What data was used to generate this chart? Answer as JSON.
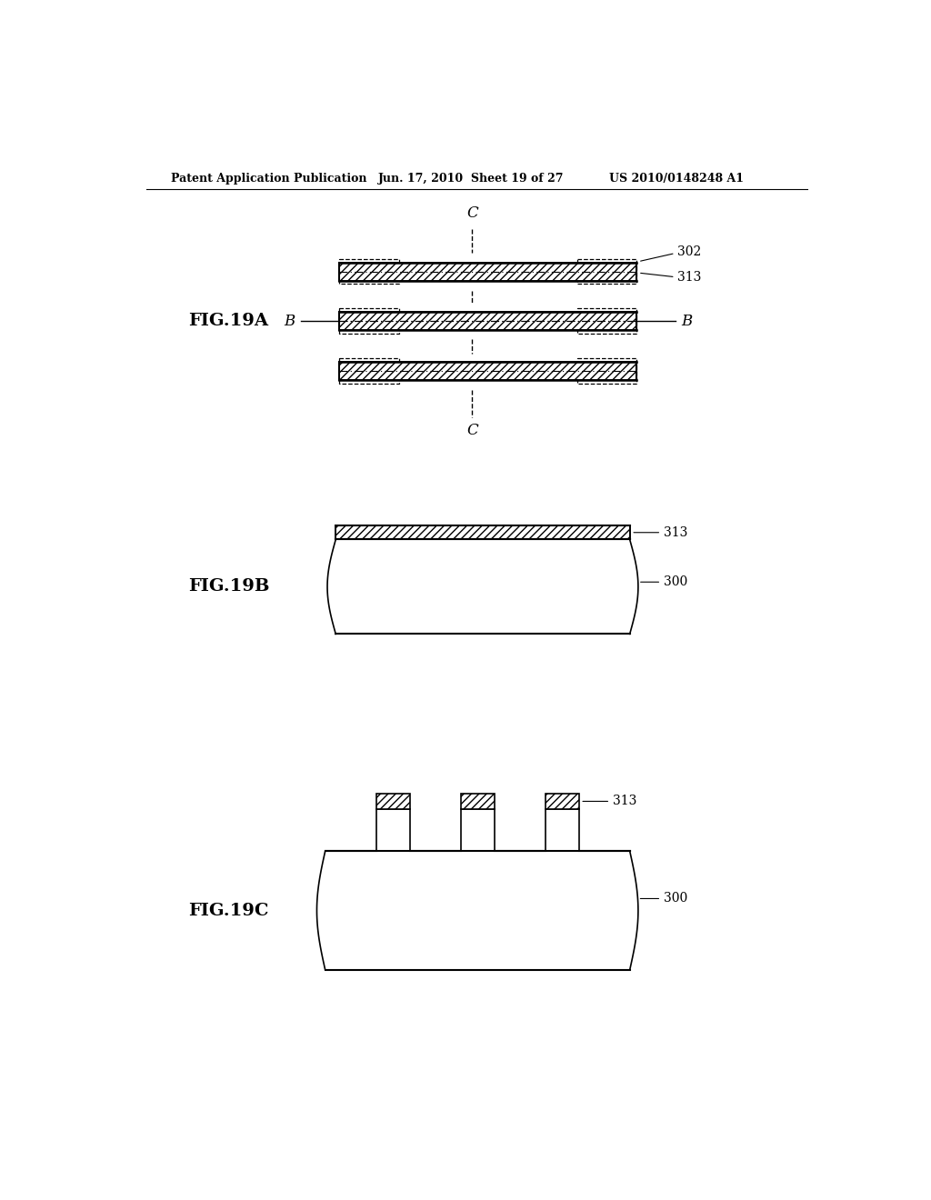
{
  "header_left": "Patent Application Publication",
  "header_mid": "Jun. 17, 2010  Sheet 19 of 27",
  "header_right": "US 2010/0148248 A1",
  "background": "#ffffff",
  "line_color": "#000000",
  "fig19a_label": "FIG.19A",
  "fig19b_label": "FIG.19B",
  "fig19c_label": "FIG.19C",
  "ref_302": "302",
  "ref_313": "313",
  "ref_300": "300"
}
